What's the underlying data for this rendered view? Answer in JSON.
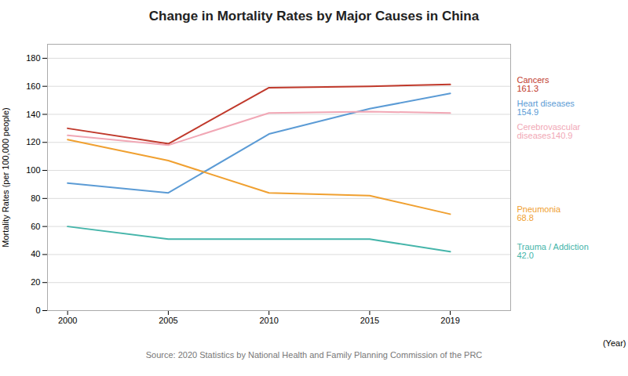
{
  "chart_data": {
    "type": "line",
    "title": "Change in Mortality Rates by Major Causes in China",
    "subtitle": "Source: 2020 Statistics by National Health and Family Planning Commission of the PRC",
    "xlabel": "(Year)",
    "ylabel": "Mortality Rates (per 100,000 people)",
    "x": [
      2000,
      2005,
      2010,
      2015,
      2019
    ],
    "xlim": [
      1999,
      2022
    ],
    "xticks": [
      2000,
      2005,
      2010,
      2015,
      2019
    ],
    "ylim": [
      0,
      190
    ],
    "yticks": [
      0,
      20,
      40,
      60,
      80,
      100,
      120,
      140,
      160,
      180
    ],
    "grid": true,
    "series": [
      {
        "color": "#c0392b",
        "values": [
          130,
          119,
          159,
          160,
          161.3
        ],
        "annotation": [
          "Cancers",
          "161.3"
        ]
      },
      {
        "color": "#5b9bd5",
        "values": [
          91,
          84,
          126,
          144,
          154.9
        ],
        "annotation": [
          "Heart diseases",
          "154.9"
        ]
      },
      {
        "color": "#f1a7b5",
        "values": [
          125,
          118,
          141,
          142,
          140.9
        ],
        "annotation": [
          "Cerebrovascular",
          "diseases140.9"
        ]
      },
      {
        "color": "#f0a030",
        "values": [
          122,
          107,
          84,
          82,
          68.8
        ],
        "annotation": [
          "Pneumonia",
          "68.8"
        ]
      },
      {
        "color": "#45b5aa",
        "values": [
          60,
          51,
          51,
          51,
          42.0
        ],
        "annotation": [
          "Trauma / Addiction",
          "42.0"
        ]
      }
    ]
  }
}
